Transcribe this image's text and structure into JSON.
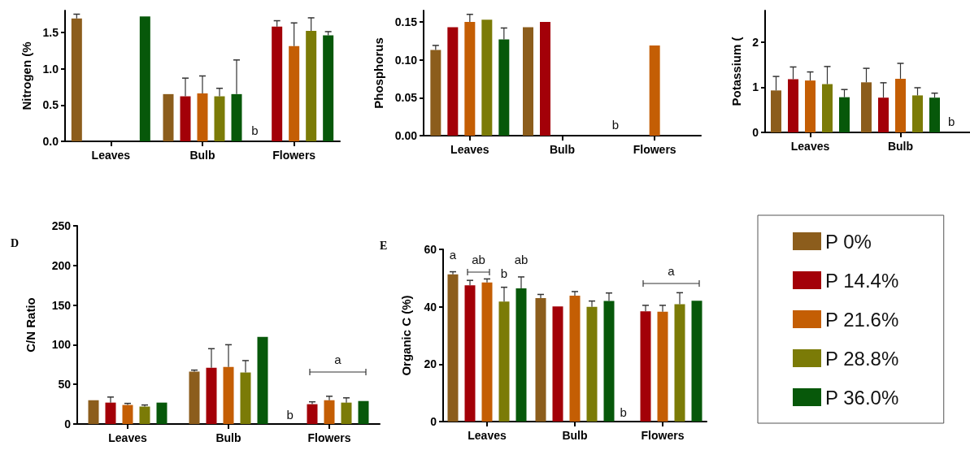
{
  "chart_data": [
    {
      "type": "bar",
      "ylabel": "Nitrogen (%",
      "categories": [
        "Leaves",
        "Bulb",
        "Flowers"
      ],
      "ylim": [
        0,
        1.8
      ],
      "yticks": [
        {
          "value": 0,
          "label": "0.0"
        },
        {
          "value": 0.5,
          "label": "0.5"
        },
        {
          "value": 1,
          "label": "1.0"
        },
        {
          "value": 1.5,
          "label": "1.5"
        }
      ],
      "series": [
        {
          "color": "#8c5d1c",
          "values": [
            1.69,
            0.65,
            null
          ],
          "errors": [
            [
              1.69,
              1.75
            ],
            null,
            null
          ]
        },
        {
          "color": "#a30008",
          "values": [
            null,
            0.62,
            1.58
          ],
          "errors": [
            null,
            [
              0.62,
              0.87
            ],
            [
              1.58,
              1.66
            ]
          ]
        },
        {
          "color": "#c45e04",
          "values": [
            null,
            0.66,
            1.31
          ],
          "errors": [
            null,
            [
              0.66,
              0.9
            ],
            [
              1.31,
              1.63
            ]
          ]
        },
        {
          "color": "#7b7b07",
          "values": [
            null,
            0.62,
            1.52
          ],
          "errors": [
            null,
            [
              0.62,
              0.73
            ],
            [
              1.52,
              1.7
            ]
          ]
        },
        {
          "color": "#07580a",
          "values": [
            1.72,
            0.65,
            1.46
          ],
          "errors": [
            null,
            [
              0.65,
              1.12
            ],
            [
              1.46,
              1.51
            ]
          ]
        }
      ],
      "annotations": [
        "b"
      ]
    },
    {
      "type": "bar",
      "ylabel": "Phosphorus",
      "categories": [
        "Leaves",
        "Bulb",
        "Flowers"
      ],
      "ylim": [
        0,
        0.165
      ],
      "yticks": [
        {
          "value": 0,
          "label": "0.00"
        },
        {
          "value": 0.05,
          "label": "0.05"
        },
        {
          "value": 0.1,
          "label": "0.10"
        },
        {
          "value": 0.15,
          "label": "0.15"
        }
      ],
      "series": [
        {
          "color": "#8c5d1c",
          "values": [
            0.113,
            0.143,
            null
          ],
          "errors": [
            [
              0.113,
              0.119
            ],
            null,
            null
          ]
        },
        {
          "color": "#a30008",
          "values": [
            0.143,
            0.15,
            null
          ],
          "errors": [
            null,
            null,
            null
          ]
        },
        {
          "color": "#c45e04",
          "values": [
            0.15,
            null,
            0.119
          ],
          "errors": [
            [
              0.15,
              0.16
            ],
            null,
            null
          ]
        },
        {
          "color": "#7b7b07",
          "values": [
            0.153,
            null,
            null
          ],
          "errors": [
            null,
            null,
            null
          ]
        },
        {
          "color": "#07580a",
          "values": [
            0.127,
            null,
            null
          ],
          "errors": [
            [
              0.127,
              0.142
            ],
            null,
            null
          ]
        }
      ],
      "annotations": [
        "b"
      ]
    },
    {
      "type": "bar",
      "ylabel": "Potassium (",
      "categories": [
        "Leaves",
        "Bulb",
        null
      ],
      "ylim": [
        0,
        2.7
      ],
      "yticks": [
        0,
        1,
        2
      ],
      "series": [
        {
          "color": "#8c5d1c",
          "values": [
            0.93,
            1.11,
            null
          ],
          "errors": [
            [
              0.93,
              1.24
            ],
            [
              1.11,
              1.42
            ],
            null
          ]
        },
        {
          "color": "#a30008",
          "values": [
            1.18,
            0.77,
            null
          ],
          "errors": [
            [
              1.18,
              1.45
            ],
            [
              0.77,
              1.1
            ],
            null
          ]
        },
        {
          "color": "#c45e04",
          "values": [
            1.15,
            1.19,
            null
          ],
          "errors": [
            [
              1.15,
              1.34
            ],
            [
              1.19,
              1.53
            ],
            null
          ]
        },
        {
          "color": "#7b7b07",
          "values": [
            1.07,
            0.82,
            null
          ],
          "errors": [
            [
              1.07,
              1.46
            ],
            [
              0.82,
              0.99
            ],
            null
          ]
        },
        {
          "color": "#07580a",
          "values": [
            0.78,
            0.77,
            null
          ],
          "errors": [
            [
              0.78,
              0.95
            ],
            [
              0.77,
              0.87
            ],
            null
          ]
        }
      ],
      "annotations": [
        "b"
      ]
    },
    {
      "type": "bar",
      "title": "D",
      "ylabel": "C/N Ratio",
      "categories": [
        "Leaves",
        "Bulb",
        "Flowers"
      ],
      "ylim": [
        0,
        250
      ],
      "yticks": [
        0,
        50,
        100,
        150,
        200,
        250
      ],
      "series": [
        {
          "color": "#8c5d1c",
          "values": [
            30,
            66,
            null
          ],
          "errors": [
            null,
            [
              66,
              68
            ],
            null
          ]
        },
        {
          "color": "#a30008",
          "values": [
            27,
            71,
            25
          ],
          "errors": [
            [
              27,
              34
            ],
            [
              71,
              95
            ],
            [
              25,
              28
            ]
          ]
        },
        {
          "color": "#c45e04",
          "values": [
            24,
            72,
            30
          ],
          "errors": [
            [
              24,
              26
            ],
            [
              72,
              100
            ],
            [
              30,
              35
            ]
          ]
        },
        {
          "color": "#7b7b07",
          "values": [
            22,
            65,
            27
          ],
          "errors": [
            [
              22,
              24
            ],
            [
              65,
              80
            ],
            [
              27,
              33
            ]
          ]
        },
        {
          "color": "#07580a",
          "values": [
            27,
            110,
            29
          ]
        }
      ],
      "annotations": [
        "b",
        "a"
      ]
    },
    {
      "type": "bar",
      "title": "E",
      "ylabel": "Organic C (%)",
      "categories": [
        "Leaves",
        "Bulb",
        "Flowers"
      ],
      "ylim": [
        0,
        60
      ],
      "yticks": [
        0,
        20,
        40,
        60
      ],
      "legend": "right",
      "series": [
        {
          "name": "P 0%",
          "color": "#8c5d1c",
          "values": [
            51.3,
            43.0,
            null
          ],
          "errors": [
            [
              51.3,
              52.2
            ],
            [
              43.0,
              44.3
            ],
            null
          ]
        },
        {
          "name": "P 14.4%",
          "color": "#a30008",
          "values": [
            47.5,
            40.1,
            38.4
          ],
          "errors": [
            [
              47.5,
              49.2
            ],
            null,
            [
              38.4,
              40.5
            ]
          ]
        },
        {
          "name": "P 21.6%",
          "color": "#c45e04",
          "values": [
            48.5,
            43.9,
            38.3
          ],
          "errors": [
            [
              48.5,
              49.7
            ],
            [
              43.9,
              45.3
            ],
            [
              38.3,
              40.5
            ]
          ]
        },
        {
          "name": "P 28.8%",
          "color": "#7b7b07",
          "values": [
            41.8,
            40.0,
            40.9
          ],
          "errors": [
            [
              41.8,
              46.8
            ],
            [
              40.0,
              42.0
            ],
            [
              40.9,
              44.9
            ]
          ]
        },
        {
          "name": "P 36.0%",
          "color": "#07580a",
          "values": [
            46.4,
            42.0,
            42.1
          ],
          "errors": [
            [
              46.4,
              50.4
            ],
            [
              42.0,
              44.8
            ],
            null
          ]
        }
      ],
      "annotations": [
        "a",
        "ab",
        "b",
        "ab",
        "b",
        "a"
      ]
    }
  ]
}
